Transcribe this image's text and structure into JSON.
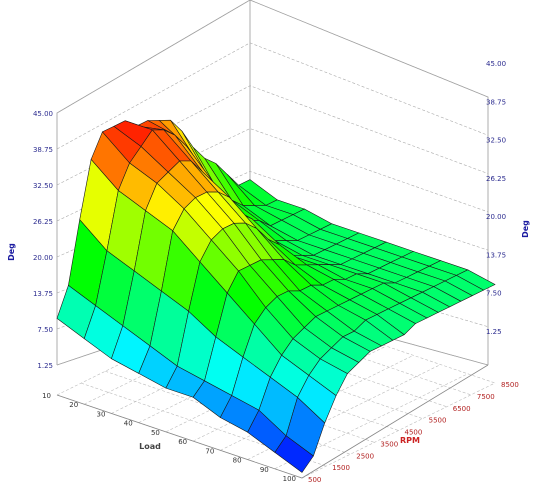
{
  "chart_data": {
    "type": "surface3d",
    "title": "",
    "zlabel_left": "Deg",
    "zlabel_right": "Deg",
    "xlabel": "RPM",
    "ylabel": "Load",
    "zlim": [
      1.25,
      45
    ],
    "z_ticks": [
      "1.25",
      "7.50",
      "13.75",
      "20.00",
      "26.25",
      "32.50",
      "38.75",
      "45.00"
    ],
    "z_ticks_left": [
      "1.25",
      "7.50",
      "13.75",
      "20.00",
      "26.25",
      "32.50",
      "38.75",
      "45.00"
    ],
    "rpm_ticks": [
      "500",
      "1500",
      "2500",
      "3500",
      "4500",
      "5500",
      "6500",
      "7500",
      "8500"
    ],
    "load_ticks": [
      "10",
      "20",
      "30",
      "40",
      "50",
      "60",
      "70",
      "80",
      "90",
      "100"
    ],
    "rpm": [
      0,
      500,
      1000,
      1500,
      2000,
      2500,
      3000,
      3500,
      4000,
      4500,
      5000,
      5500,
      6000,
      6500,
      7000,
      7500,
      8000,
      8500
    ],
    "load": [
      10,
      20,
      30,
      40,
      50,
      60,
      70,
      80,
      90,
      100
    ],
    "z": [
      [
        14,
        19,
        30,
        40,
        44,
        44,
        44,
        42,
        42,
        41,
        40,
        37,
        33,
        30,
        28,
        25,
        22,
        22
      ],
      [
        12,
        17,
        26,
        36,
        40,
        42,
        44,
        43,
        41,
        38,
        34,
        30,
        26,
        24,
        22,
        21,
        20,
        20
      ],
      [
        10,
        15,
        24,
        34,
        38,
        39,
        40,
        39,
        36,
        33,
        28,
        25,
        23,
        22,
        20,
        20,
        20,
        20
      ],
      [
        9,
        13,
        22,
        32,
        35,
        36,
        36,
        35,
        33,
        29,
        27,
        23,
        21,
        20,
        19,
        19,
        19,
        19
      ],
      [
        8,
        11,
        20,
        28,
        31,
        32,
        32,
        31,
        29,
        26,
        24,
        21,
        20,
        19,
        19,
        19,
        19,
        19
      ],
      [
        8,
        10,
        17,
        24,
        27,
        27,
        27,
        26,
        25,
        23,
        22,
        21,
        20,
        19,
        19,
        19,
        19,
        19
      ],
      [
        6,
        9,
        15,
        20,
        22,
        23,
        23,
        22,
        22,
        21,
        21,
        20,
        20,
        19,
        19,
        19,
        19,
        19
      ],
      [
        5,
        8,
        13,
        16,
        18,
        19,
        20,
        20,
        20,
        20,
        20,
        20,
        20,
        19,
        19,
        19,
        19,
        19
      ],
      [
        3,
        5,
        11,
        14,
        16,
        17,
        18,
        18,
        19,
        19,
        19,
        19,
        19,
        19,
        19,
        19,
        19,
        19
      ],
      [
        1,
        3,
        8,
        12,
        15,
        16,
        17,
        17,
        17,
        17,
        18,
        18,
        18,
        18,
        18,
        18,
        18,
        18
      ]
    ],
    "colormap": [
      "#0000ff",
      "#00ffff",
      "#00ff00",
      "#ffff00",
      "#ff0000"
    ],
    "grid": true,
    "legend": "none"
  }
}
